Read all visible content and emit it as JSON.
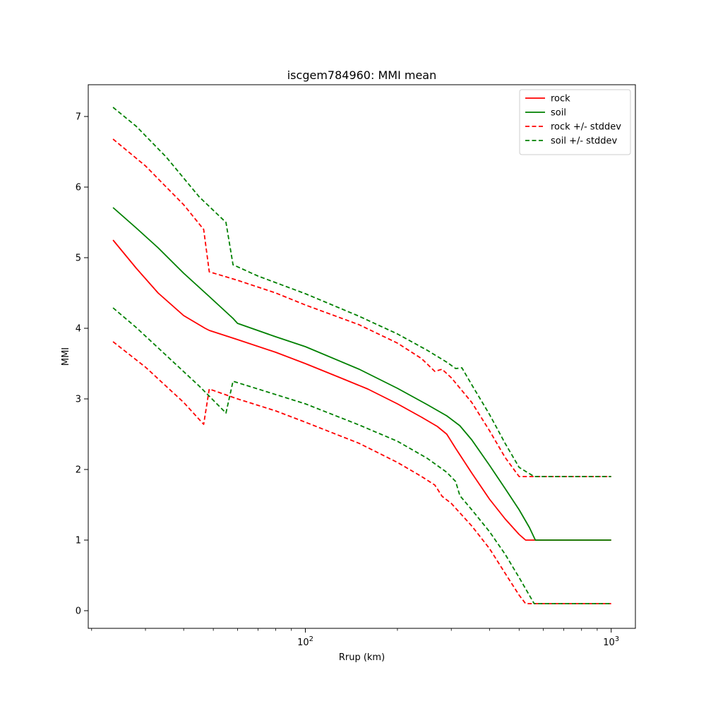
{
  "chart_data": {
    "type": "line",
    "title": "iscgem784960: MMI mean",
    "xlabel": "Rrup (km)",
    "ylabel": "MMI",
    "xscale": "log",
    "xlim": [
      19.5,
      1200
    ],
    "ylim": [
      -0.25,
      7.45
    ],
    "grid": false,
    "legend_position": "top-right",
    "x_ticks": [
      {
        "value": 100,
        "base": "10",
        "exp": "2"
      },
      {
        "value": 1000,
        "base": "10",
        "exp": "3"
      }
    ],
    "x_minor_ticks": [
      20,
      30,
      40,
      50,
      60,
      70,
      80,
      90,
      200,
      300,
      400,
      500,
      600,
      700,
      800,
      900
    ],
    "y_ticks": [
      "0",
      "1",
      "2",
      "3",
      "4",
      "5",
      "6",
      "7"
    ],
    "series": [
      {
        "name": "rock",
        "color": "#ff0000",
        "dash": "solid",
        "points": [
          [
            23.5,
            5.25
          ],
          [
            28,
            4.85
          ],
          [
            33,
            4.5
          ],
          [
            40,
            4.18
          ],
          [
            47,
            4.0
          ],
          [
            48.5,
            3.97
          ],
          [
            60,
            3.84
          ],
          [
            80,
            3.66
          ],
          [
            100,
            3.5
          ],
          [
            130,
            3.3
          ],
          [
            160,
            3.14
          ],
          [
            200,
            2.93
          ],
          [
            240,
            2.74
          ],
          [
            270,
            2.61
          ],
          [
            290,
            2.5
          ],
          [
            310,
            2.3
          ],
          [
            350,
            1.95
          ],
          [
            400,
            1.58
          ],
          [
            450,
            1.3
          ],
          [
            500,
            1.08
          ],
          [
            525,
            1.0
          ],
          [
            560,
            1.0
          ],
          [
            700,
            1.0
          ],
          [
            1000,
            1.0
          ]
        ]
      },
      {
        "name": "soil",
        "color": "#008000",
        "dash": "solid",
        "points": [
          [
            23.5,
            5.71
          ],
          [
            28,
            5.42
          ],
          [
            33,
            5.14
          ],
          [
            40,
            4.78
          ],
          [
            48.5,
            4.45
          ],
          [
            58,
            4.14
          ],
          [
            60,
            4.07
          ],
          [
            80,
            3.88
          ],
          [
            100,
            3.74
          ],
          [
            150,
            3.42
          ],
          [
            200,
            3.15
          ],
          [
            250,
            2.92
          ],
          [
            290,
            2.76
          ],
          [
            320,
            2.62
          ],
          [
            350,
            2.42
          ],
          [
            400,
            2.06
          ],
          [
            450,
            1.73
          ],
          [
            500,
            1.43
          ],
          [
            540,
            1.18
          ],
          [
            565,
            1.0
          ],
          [
            700,
            1.0
          ],
          [
            1000,
            1.0
          ]
        ]
      },
      {
        "name": "rock +/- stddev",
        "color": "#ff0000",
        "dash": "dashed",
        "points": [
          [
            23.5,
            6.68
          ],
          [
            30,
            6.3
          ],
          [
            40,
            5.75
          ],
          [
            46.5,
            5.4
          ],
          [
            48.5,
            4.8
          ],
          [
            60,
            4.68
          ],
          [
            80,
            4.5
          ],
          [
            100,
            4.33
          ],
          [
            150,
            4.05
          ],
          [
            200,
            3.79
          ],
          [
            240,
            3.57
          ],
          [
            265,
            3.39
          ],
          [
            280,
            3.42
          ],
          [
            300,
            3.3
          ],
          [
            350,
            2.95
          ],
          [
            400,
            2.55
          ],
          [
            450,
            2.17
          ],
          [
            500,
            1.9
          ],
          [
            525,
            1.9
          ],
          [
            700,
            1.9
          ],
          [
            1000,
            1.9
          ]
        ]
      },
      {
        "name": "",
        "color": "#ff0000",
        "dash": "dashed",
        "points": [
          [
            23.5,
            3.81
          ],
          [
            30,
            3.45
          ],
          [
            40,
            2.95
          ],
          [
            46.5,
            2.64
          ],
          [
            48.5,
            3.14
          ],
          [
            60,
            3.0
          ],
          [
            80,
            2.83
          ],
          [
            100,
            2.67
          ],
          [
            150,
            2.37
          ],
          [
            200,
            2.1
          ],
          [
            240,
            1.9
          ],
          [
            265,
            1.78
          ],
          [
            280,
            1.62
          ],
          [
            300,
            1.52
          ],
          [
            350,
            1.2
          ],
          [
            400,
            0.88
          ],
          [
            450,
            0.53
          ],
          [
            500,
            0.22
          ],
          [
            525,
            0.1
          ],
          [
            700,
            0.1
          ],
          [
            1000,
            0.1
          ]
        ]
      },
      {
        "name": "soil +/- stddev",
        "color": "#008000",
        "dash": "dashed",
        "points": [
          [
            23.5,
            7.13
          ],
          [
            28,
            6.86
          ],
          [
            35,
            6.43
          ],
          [
            45,
            5.86
          ],
          [
            55,
            5.5
          ],
          [
            58,
            4.9
          ],
          [
            70,
            4.74
          ],
          [
            100,
            4.49
          ],
          [
            150,
            4.17
          ],
          [
            200,
            3.92
          ],
          [
            250,
            3.69
          ],
          [
            290,
            3.52
          ],
          [
            310,
            3.43
          ],
          [
            325,
            3.44
          ],
          [
            350,
            3.2
          ],
          [
            400,
            2.78
          ],
          [
            450,
            2.37
          ],
          [
            500,
            2.03
          ],
          [
            560,
            1.9
          ],
          [
            700,
            1.9
          ],
          [
            1000,
            1.9
          ]
        ]
      },
      {
        "name": "",
        "color": "#008000",
        "dash": "dashed",
        "points": [
          [
            23.5,
            4.29
          ],
          [
            28,
            4.01
          ],
          [
            35,
            3.62
          ],
          [
            45,
            3.18
          ],
          [
            55,
            2.8
          ],
          [
            58,
            3.25
          ],
          [
            70,
            3.14
          ],
          [
            100,
            2.93
          ],
          [
            150,
            2.63
          ],
          [
            200,
            2.4
          ],
          [
            250,
            2.16
          ],
          [
            290,
            1.96
          ],
          [
            310,
            1.83
          ],
          [
            320,
            1.63
          ],
          [
            350,
            1.43
          ],
          [
            400,
            1.12
          ],
          [
            450,
            0.8
          ],
          [
            500,
            0.47
          ],
          [
            560,
            0.1
          ],
          [
            700,
            0.1
          ],
          [
            1000,
            0.1
          ]
        ]
      }
    ]
  }
}
